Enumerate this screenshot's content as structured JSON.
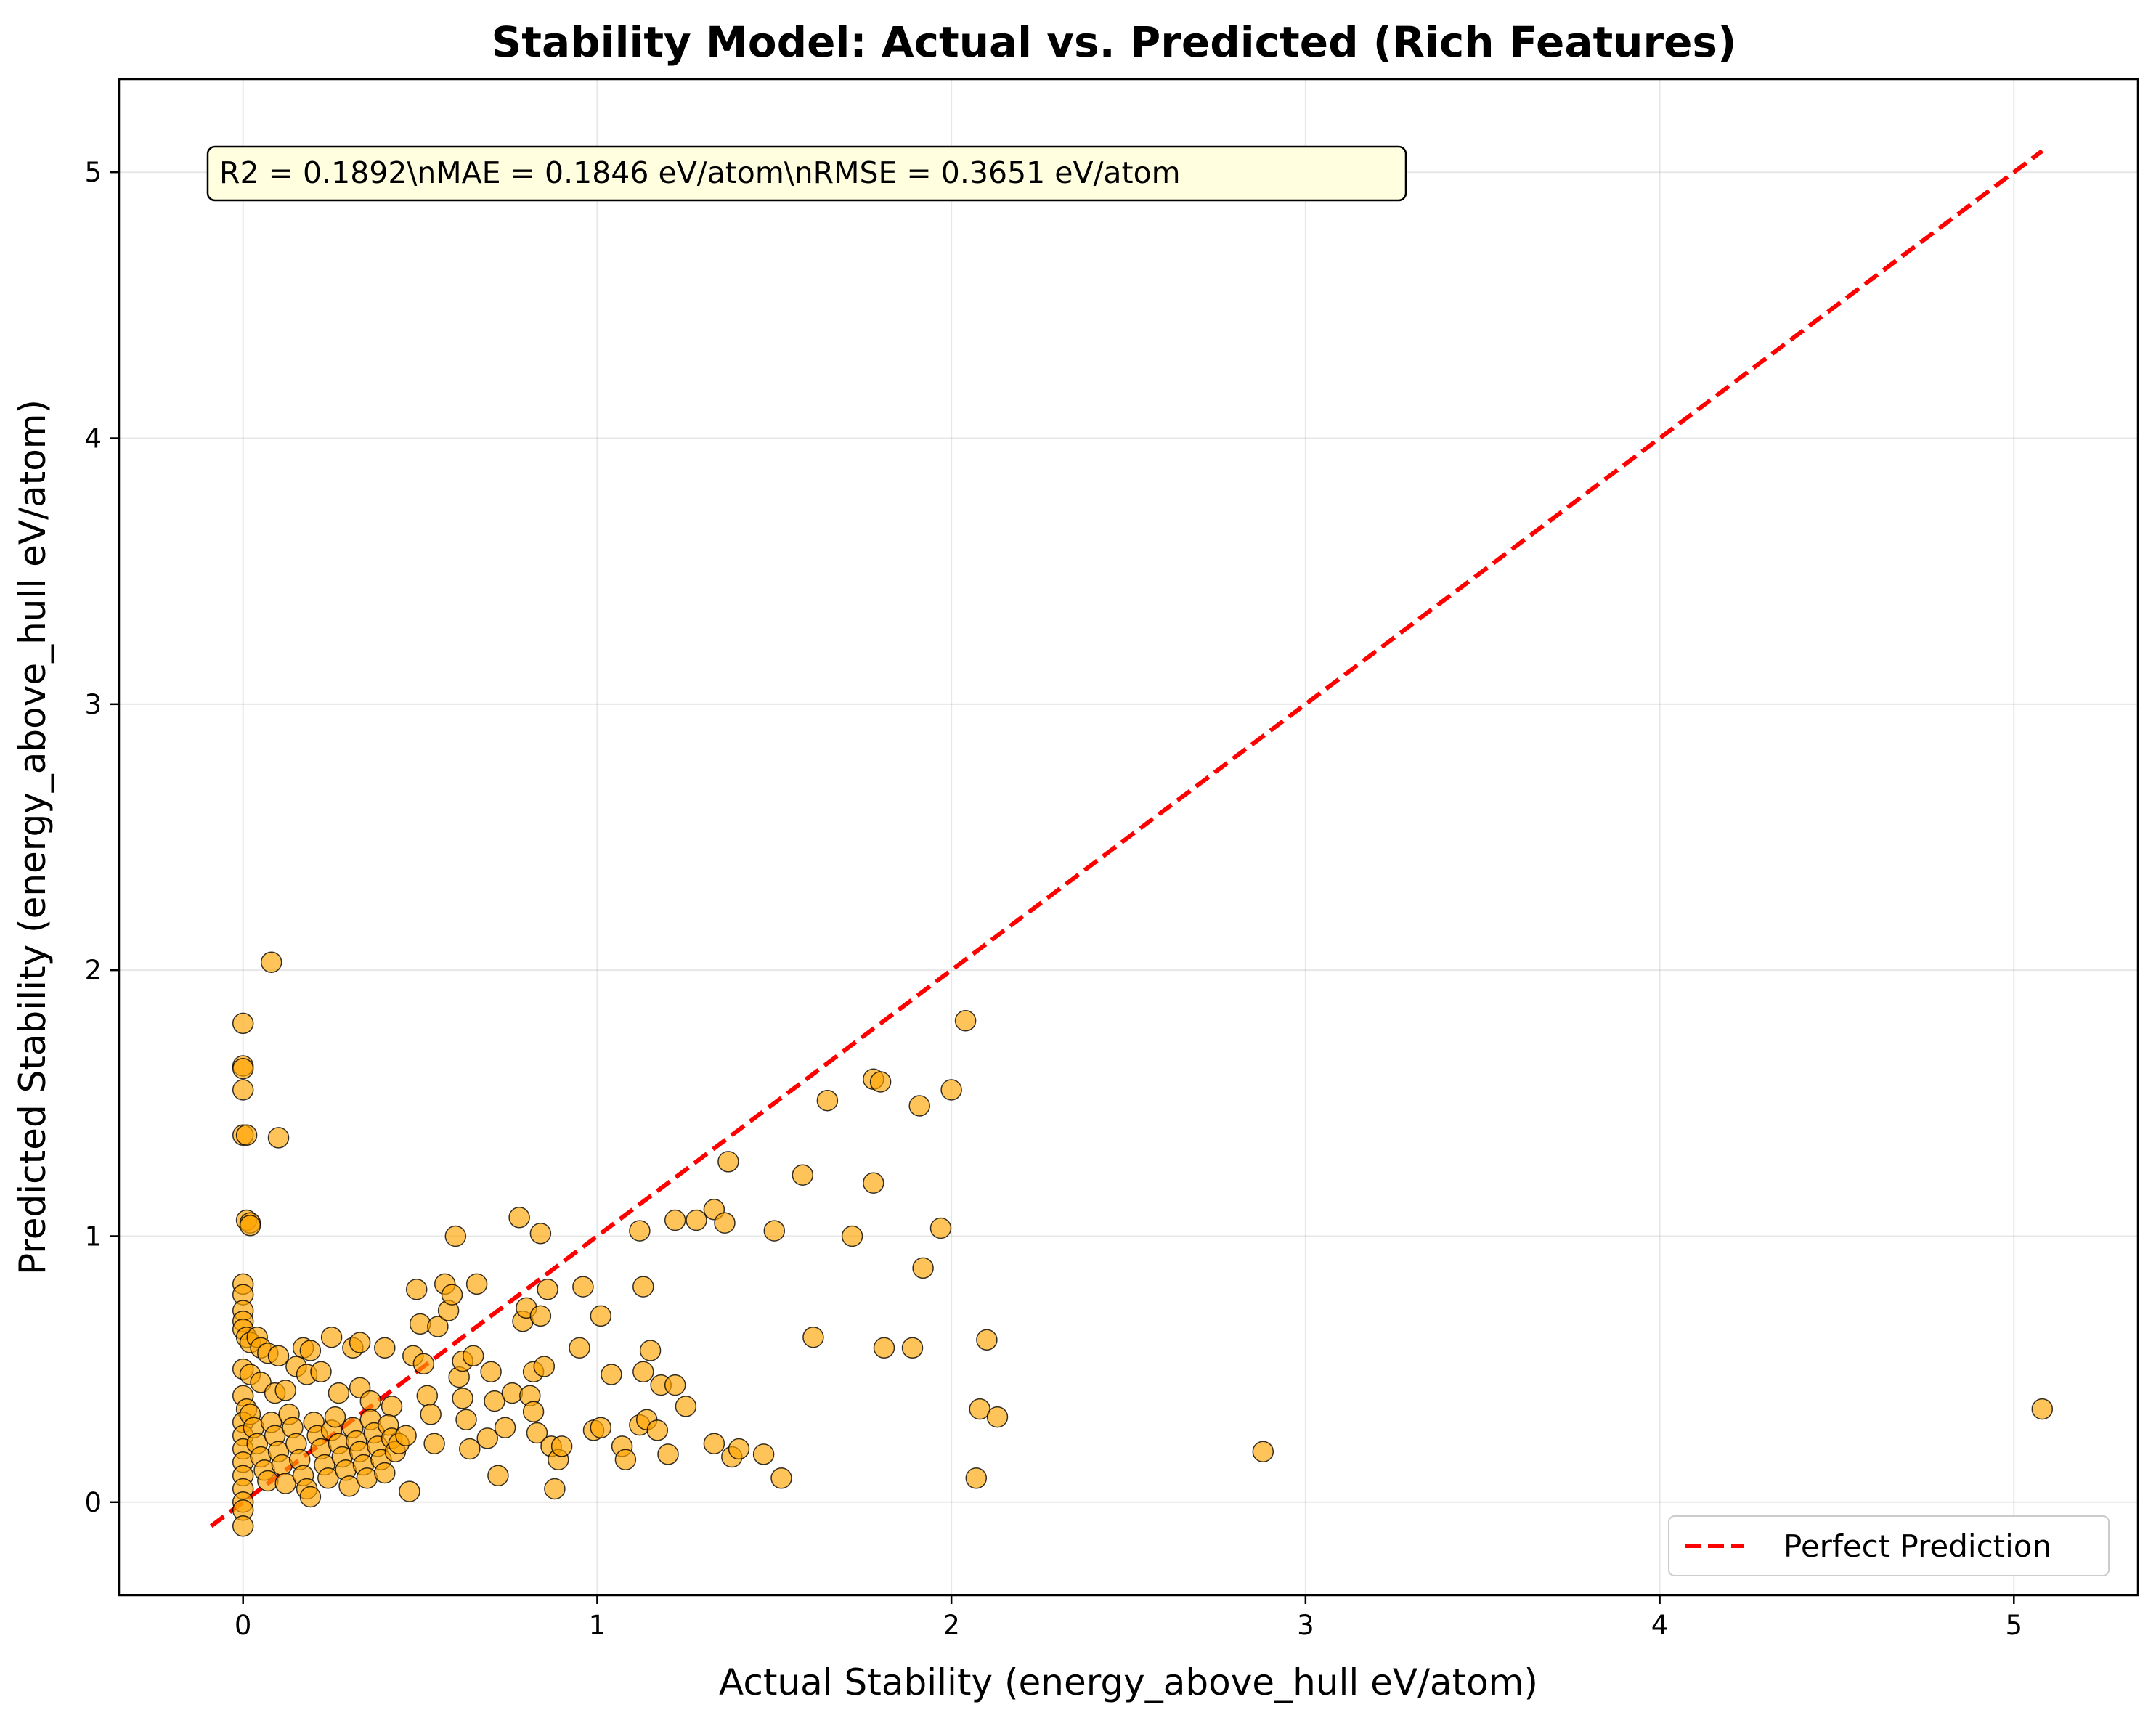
{
  "chart_data": {
    "type": "scatter",
    "title": "Stability Model: Actual vs. Predicted (Rich Features)",
    "xlabel": "Actual Stability (energy_above_hull eV/atom)",
    "ylabel": "Predicted Stability (energy_above_hull eV/atom)",
    "xlim": [
      -0.35,
      5.35
    ],
    "ylim": [
      -0.35,
      5.35
    ],
    "xticks": [
      0,
      1,
      2,
      3,
      4,
      5
    ],
    "yticks": [
      0,
      1,
      2,
      3,
      4,
      5
    ],
    "grid": true,
    "annotation": "R2 = 0.1892\\nMAE = 0.1846 eV/atom\\nRMSE = 0.3651 eV/atom",
    "legend": {
      "position": "bottom-right",
      "entries": [
        "Perfect Prediction"
      ]
    },
    "reference_line": {
      "name": "Perfect Prediction",
      "x": [
        -0.09,
        5.08
      ],
      "y": [
        -0.09,
        5.08
      ],
      "color": "#ff0000",
      "style": "dashed"
    },
    "marker_fill": "#ffa500",
    "marker_edge": "#000000",
    "points": [
      [
        0.08,
        2.03
      ],
      [
        0.0,
        1.8
      ],
      [
        0.0,
        1.64
      ],
      [
        0.0,
        1.63
      ],
      [
        0.0,
        1.55
      ],
      [
        0.0,
        1.38
      ],
      [
        0.01,
        1.38
      ],
      [
        0.1,
        1.37
      ],
      [
        0.01,
        1.06
      ],
      [
        0.02,
        1.05
      ],
      [
        0.02,
        1.04
      ],
      [
        0.0,
        0.82
      ],
      [
        0.0,
        0.78
      ],
      [
        0.0,
        0.72
      ],
      [
        0.0,
        0.68
      ],
      [
        0.0,
        0.65
      ],
      [
        0.01,
        0.62
      ],
      [
        0.02,
        0.6
      ],
      [
        0.04,
        0.62
      ],
      [
        0.05,
        0.58
      ],
      [
        0.07,
        0.56
      ],
      [
        0.1,
        0.55
      ],
      [
        0.17,
        0.58
      ],
      [
        0.19,
        0.57
      ],
      [
        0.25,
        0.62
      ],
      [
        0.31,
        0.58
      ],
      [
        0.33,
        0.6
      ],
      [
        0.4,
        0.58
      ],
      [
        0.0,
        0.5
      ],
      [
        0.02,
        0.48
      ],
      [
        0.05,
        0.45
      ],
      [
        0.09,
        0.41
      ],
      [
        0.12,
        0.42
      ],
      [
        0.15,
        0.51
      ],
      [
        0.18,
        0.48
      ],
      [
        0.22,
        0.49
      ],
      [
        0.27,
        0.41
      ],
      [
        0.33,
        0.43
      ],
      [
        0.36,
        0.38
      ],
      [
        0.42,
        0.36
      ],
      [
        0.0,
        0.4
      ],
      [
        0.01,
        0.35
      ],
      [
        0.0,
        0.3
      ],
      [
        0.0,
        0.25
      ],
      [
        0.0,
        0.2
      ],
      [
        0.0,
        0.15
      ],
      [
        0.0,
        0.1
      ],
      [
        0.0,
        0.05
      ],
      [
        0.0,
        0.0
      ],
      [
        0.0,
        -0.03
      ],
      [
        0.0,
        -0.09
      ],
      [
        0.02,
        0.33
      ],
      [
        0.03,
        0.28
      ],
      [
        0.04,
        0.22
      ],
      [
        0.05,
        0.17
      ],
      [
        0.06,
        0.12
      ],
      [
        0.07,
        0.08
      ],
      [
        0.08,
        0.3
      ],
      [
        0.09,
        0.25
      ],
      [
        0.1,
        0.19
      ],
      [
        0.11,
        0.14
      ],
      [
        0.12,
        0.07
      ],
      [
        0.13,
        0.33
      ],
      [
        0.14,
        0.28
      ],
      [
        0.15,
        0.22
      ],
      [
        0.16,
        0.16
      ],
      [
        0.17,
        0.1
      ],
      [
        0.18,
        0.05
      ],
      [
        0.19,
        0.02
      ],
      [
        0.2,
        0.3
      ],
      [
        0.21,
        0.25
      ],
      [
        0.22,
        0.2
      ],
      [
        0.23,
        0.14
      ],
      [
        0.24,
        0.09
      ],
      [
        0.25,
        0.27
      ],
      [
        0.26,
        0.32
      ],
      [
        0.27,
        0.22
      ],
      [
        0.28,
        0.17
      ],
      [
        0.29,
        0.12
      ],
      [
        0.3,
        0.06
      ],
      [
        0.31,
        0.28
      ],
      [
        0.32,
        0.23
      ],
      [
        0.33,
        0.19
      ],
      [
        0.34,
        0.14
      ],
      [
        0.35,
        0.09
      ],
      [
        0.36,
        0.31
      ],
      [
        0.37,
        0.26
      ],
      [
        0.38,
        0.21
      ],
      [
        0.39,
        0.16
      ],
      [
        0.4,
        0.11
      ],
      [
        0.41,
        0.29
      ],
      [
        0.42,
        0.24
      ],
      [
        0.43,
        0.19
      ],
      [
        0.44,
        0.22
      ],
      [
        0.46,
        0.25
      ],
      [
        0.47,
        0.04
      ],
      [
        0.48,
        0.55
      ],
      [
        0.49,
        0.8
      ],
      [
        0.5,
        0.67
      ],
      [
        0.51,
        0.52
      ],
      [
        0.52,
        0.4
      ],
      [
        0.53,
        0.33
      ],
      [
        0.54,
        0.22
      ],
      [
        0.55,
        0.66
      ],
      [
        0.57,
        0.82
      ],
      [
        0.58,
        0.72
      ],
      [
        0.59,
        0.78
      ],
      [
        0.6,
        1.0
      ],
      [
        0.61,
        0.47
      ],
      [
        0.62,
        0.53
      ],
      [
        0.62,
        0.39
      ],
      [
        0.63,
        0.31
      ],
      [
        0.64,
        0.2
      ],
      [
        0.65,
        0.55
      ],
      [
        0.66,
        0.82
      ],
      [
        0.69,
        0.24
      ],
      [
        0.7,
        0.49
      ],
      [
        0.71,
        0.38
      ],
      [
        0.72,
        0.1
      ],
      [
        0.74,
        0.28
      ],
      [
        0.76,
        0.41
      ],
      [
        0.78,
        1.07
      ],
      [
        0.79,
        0.68
      ],
      [
        0.8,
        0.73
      ],
      [
        0.81,
        0.4
      ],
      [
        0.82,
        0.49
      ],
      [
        0.82,
        0.34
      ],
      [
        0.83,
        0.26
      ],
      [
        0.84,
        1.01
      ],
      [
        0.84,
        0.7
      ],
      [
        0.85,
        0.51
      ],
      [
        0.86,
        0.8
      ],
      [
        0.87,
        0.21
      ],
      [
        0.88,
        0.05
      ],
      [
        0.89,
        0.16
      ],
      [
        0.9,
        0.21
      ],
      [
        0.95,
        0.58
      ],
      [
        0.96,
        0.81
      ],
      [
        0.99,
        0.27
      ],
      [
        1.01,
        0.7
      ],
      [
        1.01,
        0.28
      ],
      [
        1.04,
        0.48
      ],
      [
        1.07,
        0.21
      ],
      [
        1.08,
        0.16
      ],
      [
        1.12,
        1.02
      ],
      [
        1.12,
        0.29
      ],
      [
        1.13,
        0.81
      ],
      [
        1.13,
        0.49
      ],
      [
        1.14,
        0.31
      ],
      [
        1.15,
        0.57
      ],
      [
        1.17,
        0.27
      ],
      [
        1.18,
        0.44
      ],
      [
        1.2,
        0.18
      ],
      [
        1.22,
        0.44
      ],
      [
        1.22,
        1.06
      ],
      [
        1.25,
        0.36
      ],
      [
        1.28,
        1.06
      ],
      [
        1.33,
        1.1
      ],
      [
        1.33,
        0.22
      ],
      [
        1.36,
        1.05
      ],
      [
        1.37,
        1.28
      ],
      [
        1.38,
        0.17
      ],
      [
        1.4,
        0.2
      ],
      [
        1.47,
        0.18
      ],
      [
        1.5,
        1.02
      ],
      [
        1.52,
        0.09
      ],
      [
        1.58,
        1.23
      ],
      [
        1.61,
        0.62
      ],
      [
        1.65,
        1.51
      ],
      [
        1.72,
        1.0
      ],
      [
        1.78,
        1.59
      ],
      [
        1.78,
        1.2
      ],
      [
        1.8,
        1.58
      ],
      [
        1.81,
        0.58
      ],
      [
        1.89,
        0.58
      ],
      [
        1.91,
        1.49
      ],
      [
        1.92,
        0.88
      ],
      [
        1.97,
        1.03
      ],
      [
        2.0,
        1.55
      ],
      [
        2.04,
        1.81
      ],
      [
        2.07,
        0.09
      ],
      [
        2.08,
        0.35
      ],
      [
        2.1,
        0.61
      ],
      [
        2.13,
        0.32
      ],
      [
        2.88,
        0.19
      ],
      [
        5.08,
        0.35
      ]
    ]
  }
}
